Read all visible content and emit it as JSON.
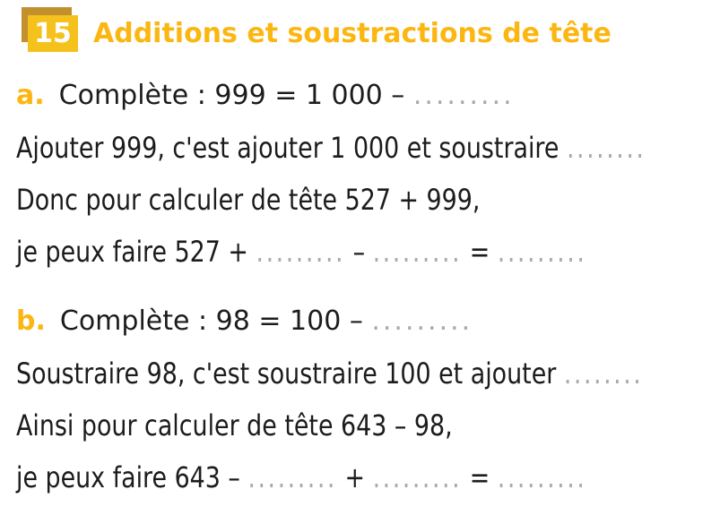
{
  "header": {
    "badge": "15",
    "title": "Additions et soustractions de tête"
  },
  "colors": {
    "accent_orange": "#fbb612",
    "badge_background": "#f5c21d",
    "badge_shadow": "#c3902e",
    "body_text": "#1c1c1c",
    "dotted_blank": "#a9a9a9"
  },
  "exercise": {
    "a": {
      "label": "a.",
      "lead_text": "Complète : 999 = 1 000 – ",
      "lead_dots": ".........",
      "line2_text": "Ajouter 999, c'est ajouter 1 000 et soustraire ",
      "line2_dots": "........",
      "line3_text": "Donc pour calculer de tête 527 + 999,",
      "line4": {
        "t1": "je peux faire 527 + ",
        "d1": ".........",
        "t2": " – ",
        "d2": ".........",
        "t3": " = ",
        "d3": "........."
      }
    },
    "b": {
      "label": "b.",
      "lead_text": "Complète : 98 = 100 – ",
      "lead_dots": ".........",
      "line2_text": "Soustraire 98, c'est soustraire 100 et ajouter ",
      "line2_dots": "........",
      "line3_text": "Ainsi pour calculer de tête 643 – 98,",
      "line4": {
        "t1": "je peux faire 643 – ",
        "d1": ".........",
        "t2": " + ",
        "d2": ".........",
        "t3": " = ",
        "d3": "........."
      }
    }
  }
}
